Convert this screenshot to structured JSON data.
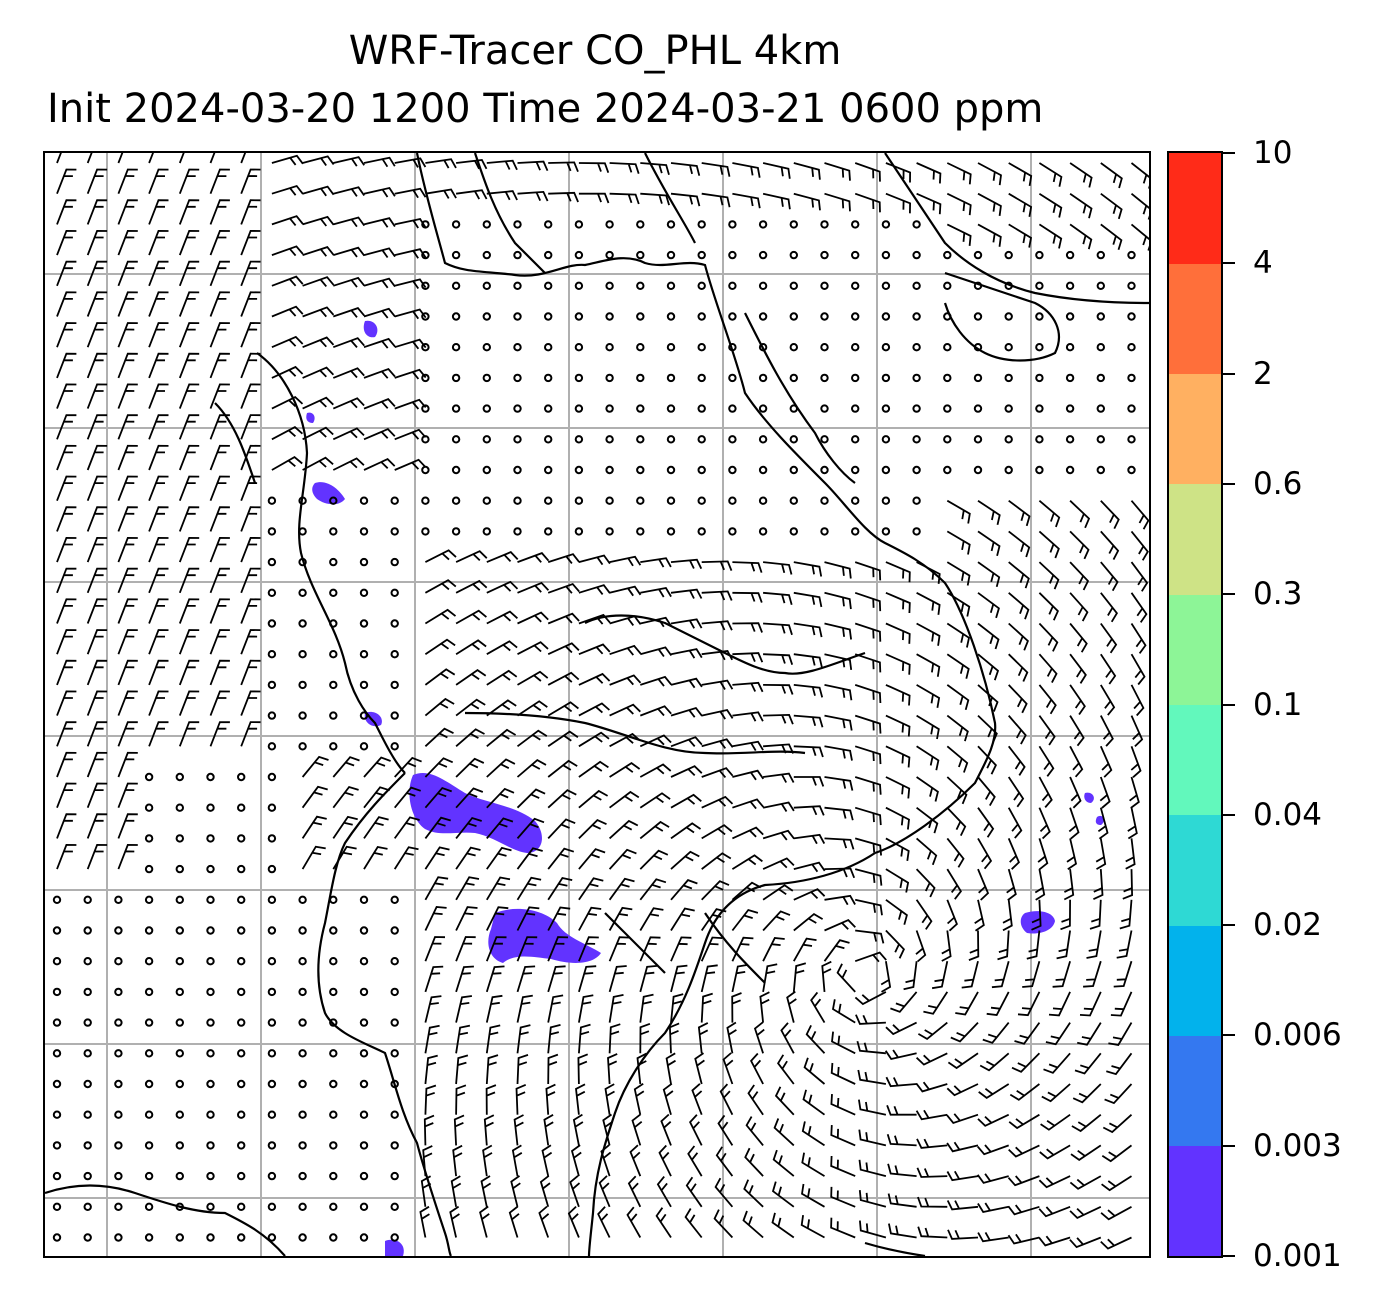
{
  "figure": {
    "title_line1": "WRF-Tracer CO_PHL 4km",
    "title_line2": "Init 2024-03-20 1200 Time 2024-03-21 0600 ppm"
  },
  "map": {
    "gridlines": "on",
    "overlays": [
      "wind-barbs",
      "coastlines",
      "state-borders",
      "tracer-shading"
    ],
    "tracer_shading_level": "0.001"
  },
  "colorbar": {
    "tick_labels": [
      "0.001",
      "0.003",
      "0.006",
      "0.02",
      "0.04",
      "0.1",
      "0.3",
      "0.6",
      "2",
      "4",
      "10"
    ],
    "colors": [
      "#6233ff",
      "#3478f0",
      "#02b2ec",
      "#2ed9d4",
      "#62f8bc",
      "#8df597",
      "#cee386",
      "#ffb061",
      "#ff6f3a",
      "#ff2b18"
    ]
  },
  "colors": {
    "axes": "#000000",
    "grid": "#b0b0b0",
    "tracer": "#6233ff"
  }
}
